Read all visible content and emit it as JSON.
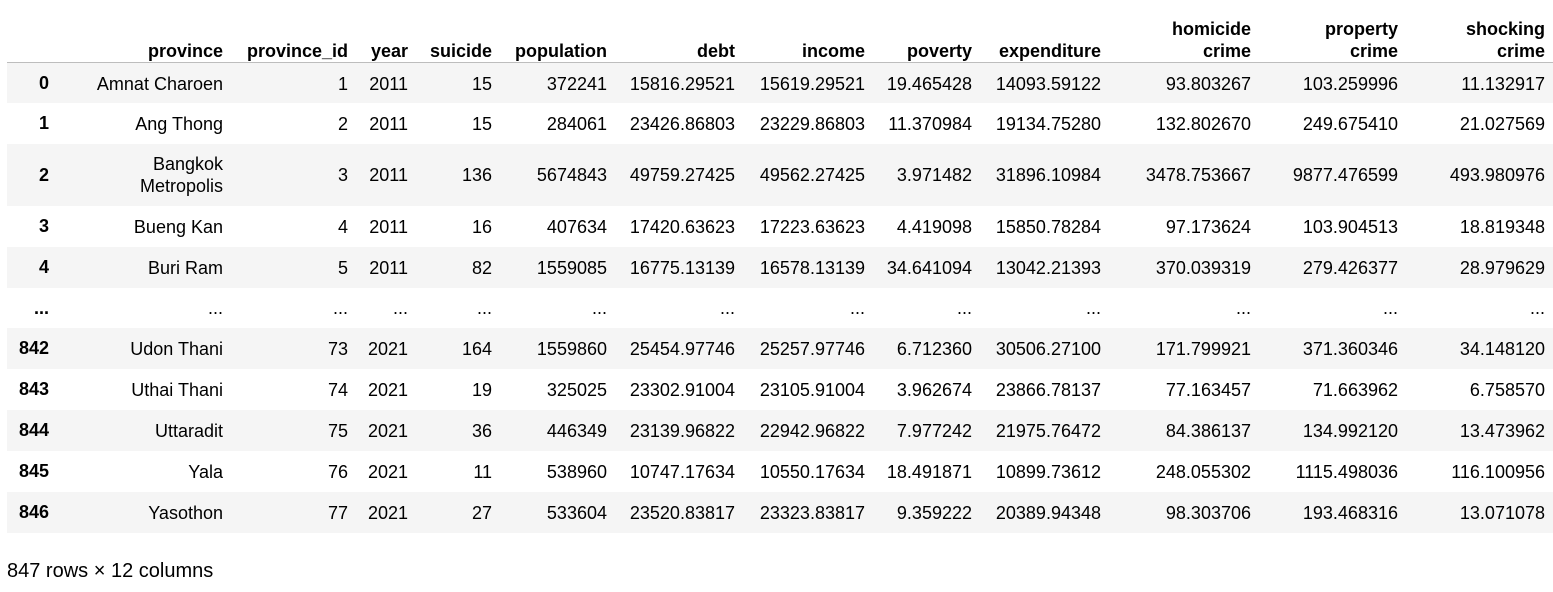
{
  "table": {
    "index_header": "",
    "columns": [
      {
        "key": "province",
        "label": "province"
      },
      {
        "key": "province_id",
        "label": "province_id"
      },
      {
        "key": "year",
        "label": "year"
      },
      {
        "key": "suicide",
        "label": "suicide"
      },
      {
        "key": "population",
        "label": "population"
      },
      {
        "key": "debt",
        "label": "debt"
      },
      {
        "key": "income",
        "label": "income"
      },
      {
        "key": "poverty",
        "label": "poverty"
      },
      {
        "key": "expenditure",
        "label": "expenditure"
      },
      {
        "key": "homicide_crime",
        "label_line1": "homicide",
        "label_line2": "crime"
      },
      {
        "key": "property_crime",
        "label_line1": "property",
        "label_line2": "crime"
      },
      {
        "key": "shocking_crime",
        "label_line1": "shocking",
        "label_line2": "crime"
      }
    ],
    "rows": [
      {
        "index": "0",
        "province": "Amnat Charoen",
        "province_id": "1",
        "year": "2011",
        "suicide": "15",
        "population": "372241",
        "debt": "15816.29521",
        "income": "15619.29521",
        "poverty": "19.465428",
        "expenditure": "14093.59122",
        "homicide_crime": "93.803267",
        "property_crime": "103.259996",
        "shocking_crime": "11.132917"
      },
      {
        "index": "1",
        "province": "Ang Thong",
        "province_id": "2",
        "year": "2011",
        "suicide": "15",
        "population": "284061",
        "debt": "23426.86803",
        "income": "23229.86803",
        "poverty": "11.370984",
        "expenditure": "19134.75280",
        "homicide_crime": "132.802670",
        "property_crime": "249.675410",
        "shocking_crime": "21.027569"
      },
      {
        "index": "2",
        "province_line1": "Bangkok",
        "province_line2": "Metropolis",
        "province_id": "3",
        "year": "2011",
        "suicide": "136",
        "population": "5674843",
        "debt": "49759.27425",
        "income": "49562.27425",
        "poverty": "3.971482",
        "expenditure": "31896.10984",
        "homicide_crime": "3478.753667",
        "property_crime": "9877.476599",
        "shocking_crime": "493.980976"
      },
      {
        "index": "3",
        "province": "Bueng Kan",
        "province_id": "4",
        "year": "2011",
        "suicide": "16",
        "population": "407634",
        "debt": "17420.63623",
        "income": "17223.63623",
        "poverty": "4.419098",
        "expenditure": "15850.78284",
        "homicide_crime": "97.173624",
        "property_crime": "103.904513",
        "shocking_crime": "18.819348"
      },
      {
        "index": "4",
        "province": "Buri Ram",
        "province_id": "5",
        "year": "2011",
        "suicide": "82",
        "population": "1559085",
        "debt": "16775.13139",
        "income": "16578.13139",
        "poverty": "34.641094",
        "expenditure": "13042.21393",
        "homicide_crime": "370.039319",
        "property_crime": "279.426377",
        "shocking_crime": "28.979629"
      },
      {
        "index": "...",
        "province": "...",
        "province_id": "...",
        "year": "...",
        "suicide": "...",
        "population": "...",
        "debt": "...",
        "income": "...",
        "poverty": "...",
        "expenditure": "...",
        "homicide_crime": "...",
        "property_crime": "...",
        "shocking_crime": "..."
      },
      {
        "index": "842",
        "province": "Udon Thani",
        "province_id": "73",
        "year": "2021",
        "suicide": "164",
        "population": "1559860",
        "debt": "25454.97746",
        "income": "25257.97746",
        "poverty": "6.712360",
        "expenditure": "30506.27100",
        "homicide_crime": "171.799921",
        "property_crime": "371.360346",
        "shocking_crime": "34.148120"
      },
      {
        "index": "843",
        "province": "Uthai Thani",
        "province_id": "74",
        "year": "2021",
        "suicide": "19",
        "population": "325025",
        "debt": "23302.91004",
        "income": "23105.91004",
        "poverty": "3.962674",
        "expenditure": "23866.78137",
        "homicide_crime": "77.163457",
        "property_crime": "71.663962",
        "shocking_crime": "6.758570"
      },
      {
        "index": "844",
        "province": "Uttaradit",
        "province_id": "75",
        "year": "2021",
        "suicide": "36",
        "population": "446349",
        "debt": "23139.96822",
        "income": "22942.96822",
        "poverty": "7.977242",
        "expenditure": "21975.76472",
        "homicide_crime": "84.386137",
        "property_crime": "134.992120",
        "shocking_crime": "13.473962"
      },
      {
        "index": "845",
        "province": "Yala",
        "province_id": "76",
        "year": "2021",
        "suicide": "11",
        "population": "538960",
        "debt": "10747.17634",
        "income": "10550.17634",
        "poverty": "18.491871",
        "expenditure": "10899.73612",
        "homicide_crime": "248.055302",
        "property_crime": "1115.498036",
        "shocking_crime": "116.100956"
      },
      {
        "index": "846",
        "province": "Yasothon",
        "province_id": "77",
        "year": "2021",
        "suicide": "27",
        "population": "533604",
        "debt": "23520.83817",
        "income": "23323.83817",
        "poverty": "9.359222",
        "expenditure": "20389.94348",
        "homicide_crime": "98.303706",
        "property_crime": "193.468316",
        "shocking_crime": "13.071078"
      }
    ]
  },
  "footer": {
    "shape_text": "847 rows × 12 columns"
  }
}
